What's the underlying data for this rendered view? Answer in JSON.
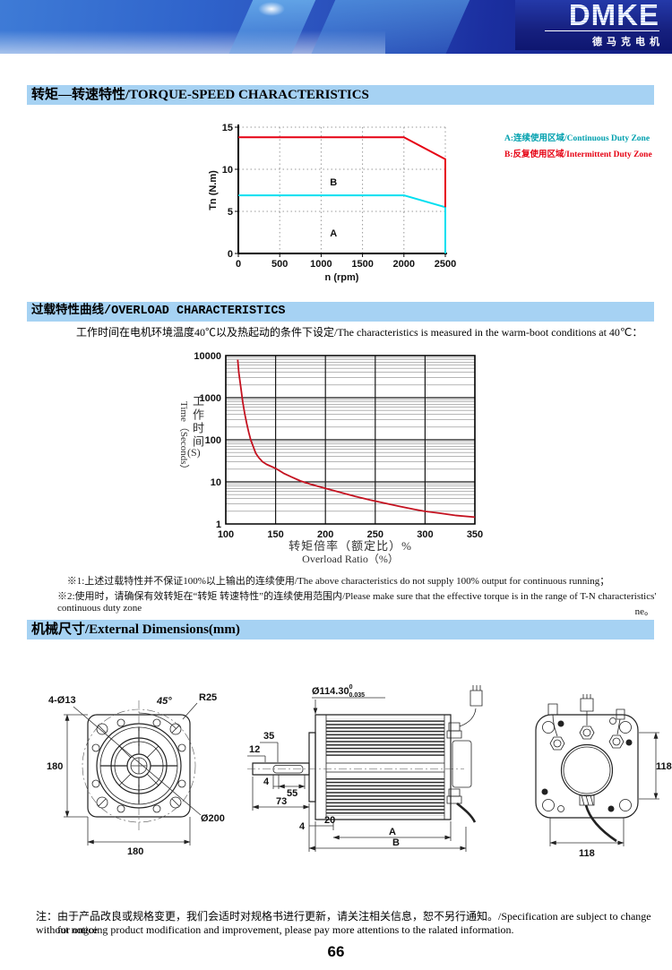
{
  "header": {
    "logo": "DMKE",
    "logo_sub": "德马克电机"
  },
  "sections": {
    "torque": {
      "title": "转矩—转速特性/TORQUE-SPEED CHARACTERISTICS",
      "legend": [
        {
          "label": "A:连续使用区域/Continuous Duty Zone",
          "color": "#00a0ae"
        },
        {
          "label": "B:反复使用区域/Intermittent Duty Zone",
          "color": "#e60012"
        }
      ]
    },
    "overload": {
      "title": "过载特性曲线/OVERLOAD CHARACTERISTICS",
      "subtitle": "工作时间在电机环境温度40℃以及热起动的条件下设定/The characteristics is measured in the warm-boot conditions at 40℃：",
      "notes": [
        "※1:上述过载特性并不保证100%以上输出的连续使用/The above characteristics do not supply 100% output for continuous running；",
        "※2:使用时，请确保有效转矩在“转矩 转速特性”的连续使用范围内/Please make sure that the effective torque is in the range of T-N characteristics' continuous duty zone",
        "ne。"
      ]
    },
    "dimensions": {
      "title": "机械尺寸/External Dimensions(mm)",
      "left_view": {
        "labels": {
          "holes": "4-Ø13",
          "angle": "45°",
          "radius": "R25",
          "height": "180",
          "width": "180",
          "outer": "Ø200"
        }
      },
      "side_view": {
        "labels": {
          "shaft_dia": "Ø114.30",
          "tol_sup": "0",
          "tol_sub": "0.035",
          "l35": "35",
          "l12": "12",
          "l4a": "4",
          "l55": "55",
          "l73": "73",
          "l4b": "4",
          "l20": "20",
          "A": "A",
          "B": "B"
        }
      },
      "rear_view": {
        "labels": {
          "height": "118",
          "width": "118"
        }
      }
    }
  },
  "footer": {
    "note_line1": "注：由于产品改良或规格变更，我们会适时对规格书进行更新，请关注相关信息，恕不另行通知。/Specification are subject to change without notice",
    "note_line2": "for ongoing product modification and improvement, please pay more attentions to the ralated information.",
    "page_number": "66"
  },
  "chart_data": [
    {
      "type": "line",
      "title": "Torque-Speed Characteristics",
      "xlabel": "n (rpm)",
      "ylabel": "Tn (N.m)",
      "xlim": [
        0,
        2500
      ],
      "ylim": [
        0,
        15
      ],
      "xticks": [
        0,
        500,
        1000,
        1500,
        2000,
        2500
      ],
      "yticks": [
        0,
        5,
        10,
        15
      ],
      "grid": "dotted",
      "legend_position": "right",
      "series": [
        {
          "name": "A 连续使用区域 Continuous Duty Zone",
          "color": "#00dff0",
          "points": [
            [
              0,
              6.9
            ],
            [
              2000,
              6.9
            ],
            [
              2500,
              5.5
            ],
            [
              2500,
              0
            ]
          ],
          "zone_label": "A",
          "zone_label_at": [
            1150,
            2.0
          ]
        },
        {
          "name": "B 反复使用区域 Intermittent Duty Zone",
          "color": "#e60012",
          "points": [
            [
              0,
              13.8
            ],
            [
              2000,
              13.8
            ],
            [
              2500,
              11.2
            ],
            [
              2500,
              5.5
            ]
          ],
          "zone_label": "B",
          "zone_label_at": [
            1150,
            8.1
          ]
        }
      ]
    },
    {
      "type": "line",
      "title": "Overload Characteristics",
      "xlabel_cn": "转矩倍率（额定比）%",
      "xlabel_en": "Overload Ratio（%）",
      "ylabel_en": "Time（Seconds）",
      "ylabel_cn": "工作时间",
      "ylabel_unit": "(S)",
      "xlim": [
        100,
        350
      ],
      "ylim": [
        1,
        10000
      ],
      "yscale": "log",
      "xticks": [
        100,
        150,
        200,
        250,
        300,
        350
      ],
      "yticks": [
        1,
        10,
        100,
        1000,
        10000
      ],
      "grid": "log-minor",
      "series": [
        {
          "name": "overload-time-limit",
          "color": "#c41220",
          "points": [
            [
              112,
              8000
            ],
            [
              113,
              4000
            ],
            [
              115,
              1800
            ],
            [
              117,
              800
            ],
            [
              119,
              420
            ],
            [
              121,
              240
            ],
            [
              123,
              150
            ],
            [
              125,
              100
            ],
            [
              127,
              75
            ],
            [
              130,
              48
            ],
            [
              133,
              38
            ],
            [
              137,
              30
            ],
            [
              141,
              26
            ],
            [
              146,
              23
            ],
            [
              150,
              21
            ],
            [
              158,
              16
            ],
            [
              166,
              13
            ],
            [
              175,
              10.5
            ],
            [
              185,
              8.8
            ],
            [
              200,
              7
            ],
            [
              215,
              5.6
            ],
            [
              230,
              4.5
            ],
            [
              245,
              3.7
            ],
            [
              260,
              3.1
            ],
            [
              275,
              2.6
            ],
            [
              290,
              2.2
            ],
            [
              300,
              2.0
            ],
            [
              315,
              1.8
            ],
            [
              330,
              1.6
            ],
            [
              350,
              1.45
            ]
          ]
        }
      ]
    }
  ]
}
